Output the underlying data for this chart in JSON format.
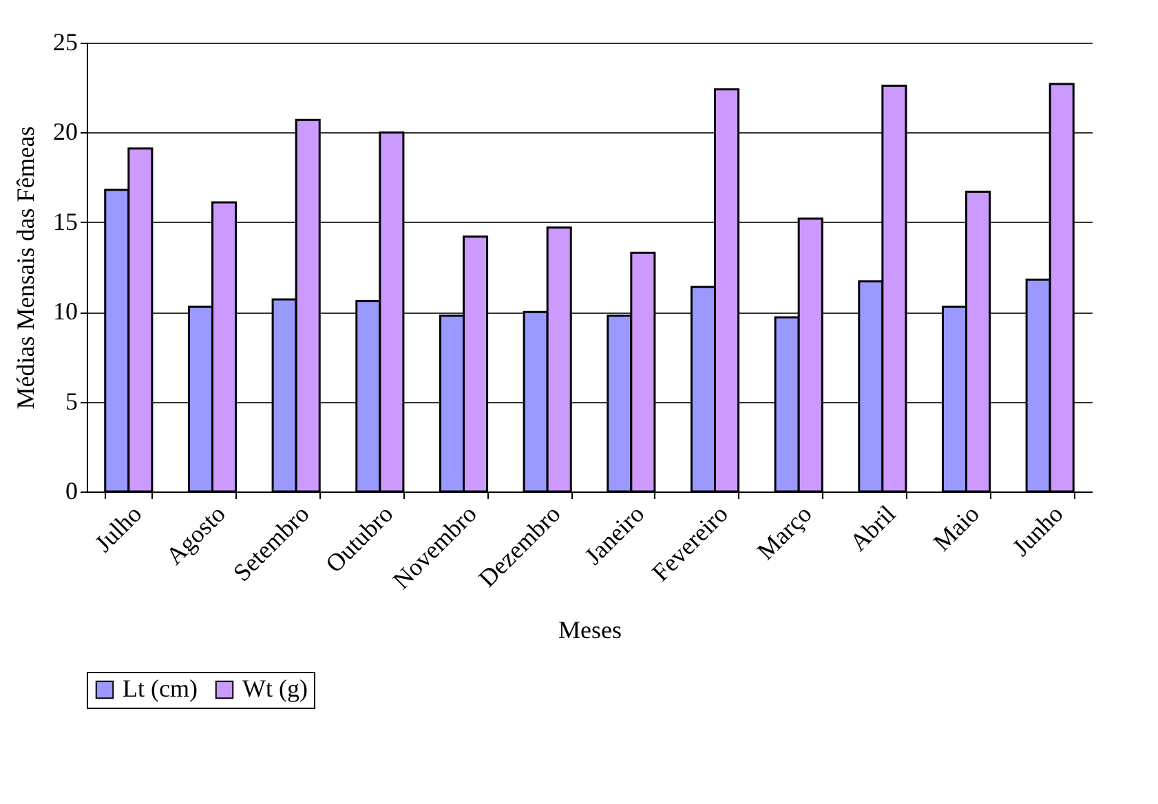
{
  "chart_data": {
    "type": "bar",
    "xlabel": "Meses",
    "ylabel": "Médias Mensais das Fêmeas",
    "categories": [
      "Julho",
      "Agosto",
      "Setembro",
      "Outubro",
      "Novembro",
      "Dezembro",
      "Janeiro",
      "Fevereiro",
      "Março",
      "Abril",
      "Maio",
      "Junho"
    ],
    "series": [
      {
        "name": "Lt (cm)",
        "color": "#9999ff",
        "values": [
          16.8,
          10.3,
          10.7,
          10.6,
          9.8,
          10.0,
          9.8,
          11.4,
          9.7,
          11.7,
          10.3,
          11.8
        ]
      },
      {
        "name": "Wt (g)",
        "color": "#cc99ff",
        "values": [
          19.1,
          16.1,
          20.7,
          20.0,
          14.2,
          14.7,
          13.3,
          22.4,
          15.2,
          22.6,
          16.7,
          22.7
        ]
      }
    ],
    "ylim": [
      0,
      25
    ],
    "yticks": [
      0,
      5,
      10,
      15,
      20,
      25
    ],
    "grid": "y",
    "legend": "bottom"
  }
}
